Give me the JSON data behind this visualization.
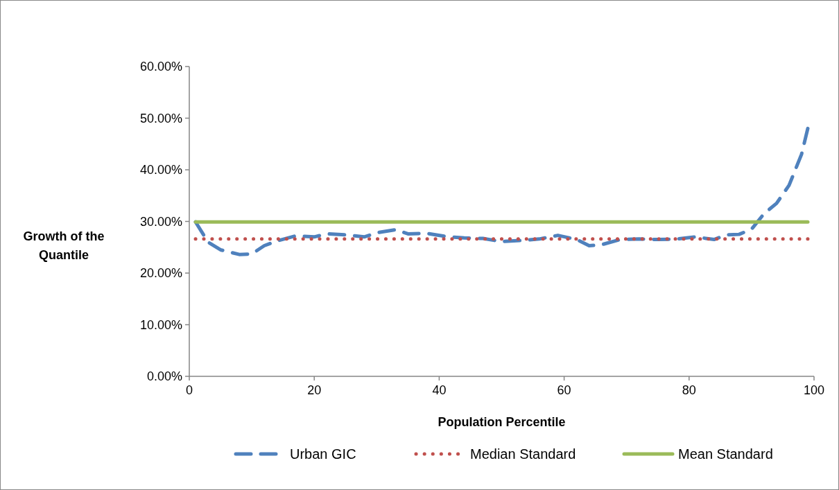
{
  "chart_data": {
    "type": "line",
    "xlabel": "Population Percentile",
    "ylabel": "Growth of the Quantile",
    "xlim": [
      0,
      100
    ],
    "xticks": [
      0,
      20,
      40,
      60,
      80,
      100
    ],
    "ylim": [
      0,
      60
    ],
    "yticks": [
      {
        "value": 0,
        "label": "0.00%"
      },
      {
        "value": 10,
        "label": "10.00%"
      },
      {
        "value": 20,
        "label": "20.00%"
      },
      {
        "value": 30,
        "label": "30.00%"
      },
      {
        "value": 40,
        "label": "40.00%"
      },
      {
        "value": 50,
        "label": "50.00%"
      },
      {
        "value": 60,
        "label": "60.00%"
      }
    ],
    "legend": "bottom",
    "marker": "none",
    "series": [
      {
        "name": "Urban GIC",
        "color": "#4f81bd",
        "line_style": "dashed",
        "x": [
          1,
          3,
          5,
          8,
          10,
          12,
          14,
          17,
          20,
          22,
          25,
          28,
          30,
          33,
          35,
          38,
          41,
          44,
          47,
          50,
          53,
          56,
          59,
          62,
          64,
          66,
          69,
          72,
          75,
          78,
          81,
          84,
          86,
          88,
          90,
          92,
          94,
          96,
          98,
          99
        ],
        "values": [
          29.9,
          26,
          24.5,
          23.6,
          23.7,
          25.3,
          26.2,
          27.2,
          27,
          27.6,
          27.4,
          27,
          27.8,
          28.4,
          27.6,
          27.7,
          27.1,
          26.8,
          26.7,
          26.1,
          26.3,
          26.6,
          27.3,
          26.5,
          25.3,
          25.5,
          26.5,
          26.6,
          26.5,
          26.6,
          27,
          26.5,
          27.4,
          27.5,
          28.5,
          31.5,
          33.5,
          37,
          43,
          48
        ]
      },
      {
        "name": "Median Standard",
        "color": "#c0504d",
        "line_style": "dotted",
        "x": [
          1,
          99
        ],
        "values": [
          26.6,
          26.6
        ]
      },
      {
        "name": "Mean Standard",
        "color": "#9bbb59",
        "line_style": "solid",
        "x": [
          1,
          99
        ],
        "values": [
          29.9,
          29.9
        ]
      }
    ]
  }
}
